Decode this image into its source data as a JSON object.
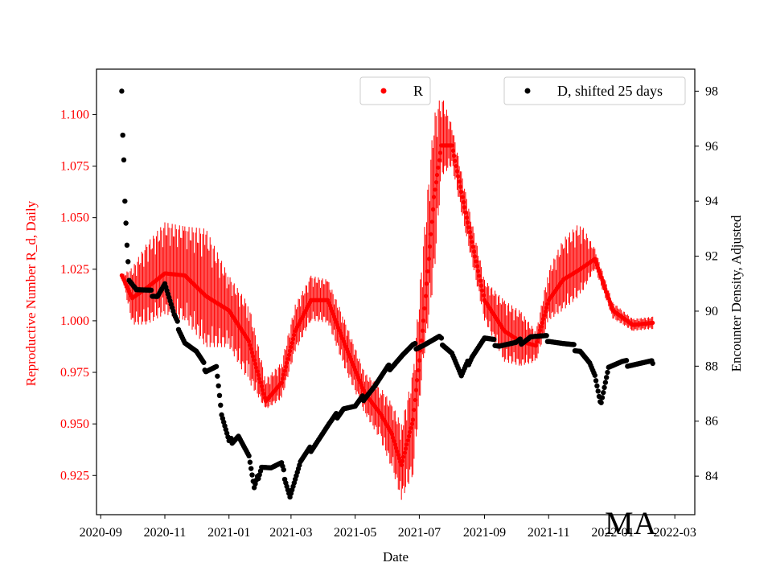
{
  "chart_data": {
    "type": "scatter",
    "xlabel": "Date",
    "ylabel_left": "Reproductive Number R_d, Daily",
    "ylabel_right": "Encounter Density, Adjusted",
    "state_label": "MA",
    "x_ticks": [
      "2020-09",
      "2020-11",
      "2021-01",
      "2021-03",
      "2021-05",
      "2021-07",
      "2021-09",
      "2021-11",
      "2022-01",
      "2022-03"
    ],
    "x_range": [
      "2020-08-28",
      "2022-03-20"
    ],
    "y_left_range": [
      0.906,
      1.122
    ],
    "y_left_ticks": [
      "0.925",
      "0.950",
      "0.975",
      "1.000",
      "1.025",
      "1.050",
      "1.075",
      "1.100"
    ],
    "y_right_range": [
      82.6,
      98.8
    ],
    "y_right_ticks": [
      "84",
      "86",
      "88",
      "90",
      "92",
      "94",
      "96",
      "98"
    ],
    "legend_R": "R",
    "legend_D": "D, shifted 25 days",
    "colors": {
      "R": "#ff0000",
      "D": "#000000",
      "left_axis": "#ff0000",
      "right_axis": "#000000"
    },
    "series": [
      {
        "name": "R",
        "axis": "left",
        "marker": "point with vertical error bar",
        "points": [
          [
            "2020-09-21",
            1.022,
            1.022,
            1.022
          ],
          [
            "2020-10-01",
            1.011,
            0.998,
            1.026
          ],
          [
            "2020-10-15",
            1.016,
            0.998,
            1.038
          ],
          [
            "2020-11-01",
            1.023,
            1.003,
            1.048
          ],
          [
            "2020-11-20",
            1.022,
            1.0,
            1.046
          ],
          [
            "2020-12-10",
            1.012,
            0.987,
            1.045
          ],
          [
            "2021-01-01",
            1.005,
            0.987,
            1.022
          ],
          [
            "2021-01-20",
            0.99,
            0.97,
            1.008
          ],
          [
            "2021-02-05",
            0.961,
            0.957,
            0.972
          ],
          [
            "2021-02-20",
            0.97,
            0.962,
            0.98
          ],
          [
            "2021-03-05",
            0.995,
            0.985,
            1.008
          ],
          [
            "2021-03-20",
            1.01,
            1.0,
            1.022
          ],
          [
            "2021-04-05",
            1.01,
            0.999,
            1.02
          ],
          [
            "2021-04-20",
            0.99,
            0.978,
            1.002
          ],
          [
            "2021-05-10",
            0.965,
            0.955,
            0.975
          ],
          [
            "2021-05-25",
            0.955,
            0.942,
            0.968
          ],
          [
            "2021-06-05",
            0.945,
            0.928,
            0.96
          ],
          [
            "2021-06-14",
            0.93,
            0.913,
            0.95
          ],
          [
            "2021-06-25",
            0.952,
            0.925,
            0.975
          ],
          [
            "2021-07-05",
            1.0,
            0.98,
            1.04
          ],
          [
            "2021-07-15",
            1.06,
            1.02,
            1.1
          ],
          [
            "2021-07-22",
            1.085,
            1.07,
            1.11
          ],
          [
            "2021-08-01",
            1.085,
            1.075,
            1.095
          ],
          [
            "2021-08-15",
            1.05,
            1.04,
            1.06
          ],
          [
            "2021-09-01",
            1.01,
            1.0,
            1.02
          ],
          [
            "2021-09-20",
            0.995,
            0.98,
            1.01
          ],
          [
            "2021-10-05",
            0.99,
            0.978,
            1.005
          ],
          [
            "2021-10-20",
            0.988,
            0.98,
            0.995
          ],
          [
            "2021-11-01",
            1.01,
            1.0,
            1.025
          ],
          [
            "2021-11-15",
            1.02,
            1.005,
            1.04
          ],
          [
            "2021-12-01",
            1.025,
            1.012,
            1.048
          ],
          [
            "2021-12-15",
            1.03,
            1.025,
            1.035
          ],
          [
            "2022-01-01",
            1.005,
            1.001,
            1.009
          ],
          [
            "2022-01-20",
            0.998,
            0.995,
            1.001
          ],
          [
            "2022-02-08",
            0.999,
            0.996,
            1.002
          ]
        ]
      },
      {
        "name": "D, shifted 25 days",
        "axis": "right",
        "marker": "point",
        "points": [
          [
            "2020-09-21",
            98.0
          ],
          [
            "2020-09-22",
            96.4
          ],
          [
            "2020-09-23",
            95.5
          ],
          [
            "2020-09-24",
            94.0
          ],
          [
            "2020-09-26",
            92.4
          ],
          [
            "2020-09-28",
            91.2
          ],
          [
            "2020-10-05",
            90.8
          ],
          [
            "2020-10-15",
            90.7
          ],
          [
            "2020-10-25",
            90.6
          ],
          [
            "2020-11-01",
            91.0
          ],
          [
            "2020-11-10",
            89.8
          ],
          [
            "2020-11-20",
            88.9
          ],
          [
            "2020-12-01",
            88.5
          ],
          [
            "2020-12-10",
            87.9
          ],
          [
            "2020-12-20",
            88.0
          ],
          [
            "2020-12-25",
            86.2
          ],
          [
            "2021-01-01",
            85.2
          ],
          [
            "2021-01-10",
            85.5
          ],
          [
            "2021-01-20",
            84.7
          ],
          [
            "2021-01-25",
            83.5
          ],
          [
            "2021-02-01",
            84.4
          ],
          [
            "2021-02-10",
            84.3
          ],
          [
            "2021-02-20",
            84.4
          ],
          [
            "2021-02-28",
            83.3
          ],
          [
            "2021-03-10",
            84.5
          ],
          [
            "2021-03-20",
            85.0
          ],
          [
            "2021-04-05",
            85.8
          ],
          [
            "2021-04-20",
            86.5
          ],
          [
            "2021-05-01",
            86.5
          ],
          [
            "2021-05-10",
            86.9
          ],
          [
            "2021-05-20",
            87.3
          ],
          [
            "2021-06-01",
            87.9
          ],
          [
            "2021-06-15",
            88.4
          ],
          [
            "2021-06-25",
            88.7
          ],
          [
            "2021-07-05",
            88.8
          ],
          [
            "2021-07-20",
            89.0
          ],
          [
            "2021-08-01",
            88.5
          ],
          [
            "2021-08-10",
            87.6
          ],
          [
            "2021-08-20",
            88.4
          ],
          [
            "2021-09-01",
            89.0
          ],
          [
            "2021-09-15",
            88.8
          ],
          [
            "2021-10-01",
            88.8
          ],
          [
            "2021-10-15",
            89.1
          ],
          [
            "2021-11-01",
            89.0
          ],
          [
            "2021-11-15",
            88.8
          ],
          [
            "2021-12-01",
            88.6
          ],
          [
            "2021-12-10",
            88.1
          ],
          [
            "2021-12-15",
            87.6
          ],
          [
            "2021-12-20",
            86.6
          ],
          [
            "2021-12-28",
            88.0
          ],
          [
            "2022-01-10",
            88.1
          ],
          [
            "2022-02-08",
            88.1
          ]
        ]
      }
    ]
  }
}
